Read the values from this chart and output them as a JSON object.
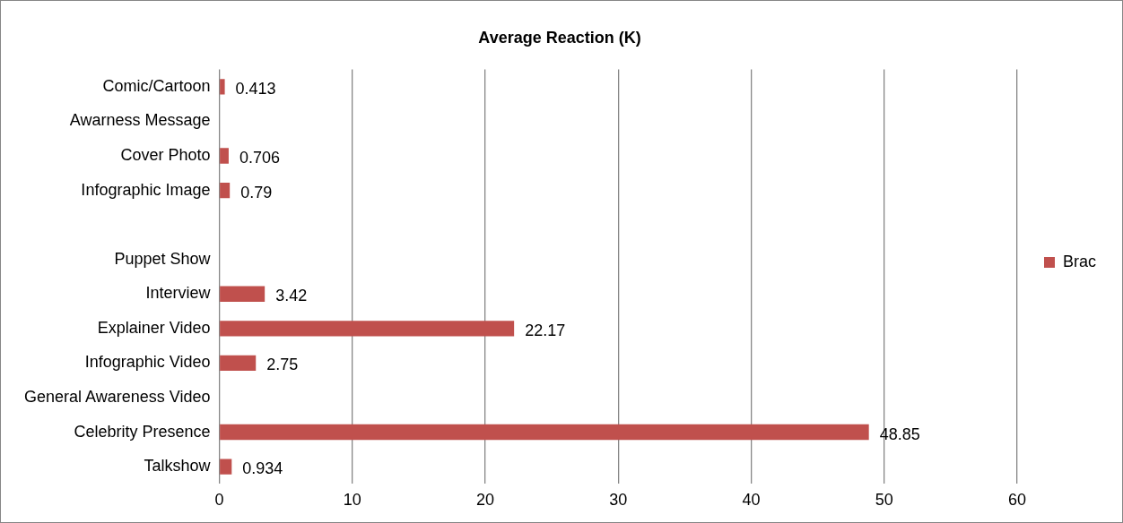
{
  "chart_data": {
    "type": "bar",
    "orientation": "horizontal",
    "title": "Average Reaction (K)",
    "categories": [
      "Comic/Cartoon",
      "Awarness Message",
      "Cover Photo",
      "Infographic Image",
      null,
      "Puppet Show",
      "Interview",
      "Explainer Video",
      "Infographic Video",
      "General Awareness Video",
      "Celebrity Presence",
      "Talkshow"
    ],
    "series": [
      {
        "name": "Brac",
        "color": "#c0504d",
        "values": [
          0.413,
          null,
          0.706,
          0.79,
          null,
          null,
          3.42,
          22.17,
          2.75,
          null,
          48.85,
          0.934
        ]
      }
    ],
    "xlim": [
      0,
      60
    ],
    "xticks": [
      0,
      10,
      20,
      30,
      40,
      50,
      60
    ],
    "grid": "x",
    "legend": "right",
    "data_labels": true
  }
}
